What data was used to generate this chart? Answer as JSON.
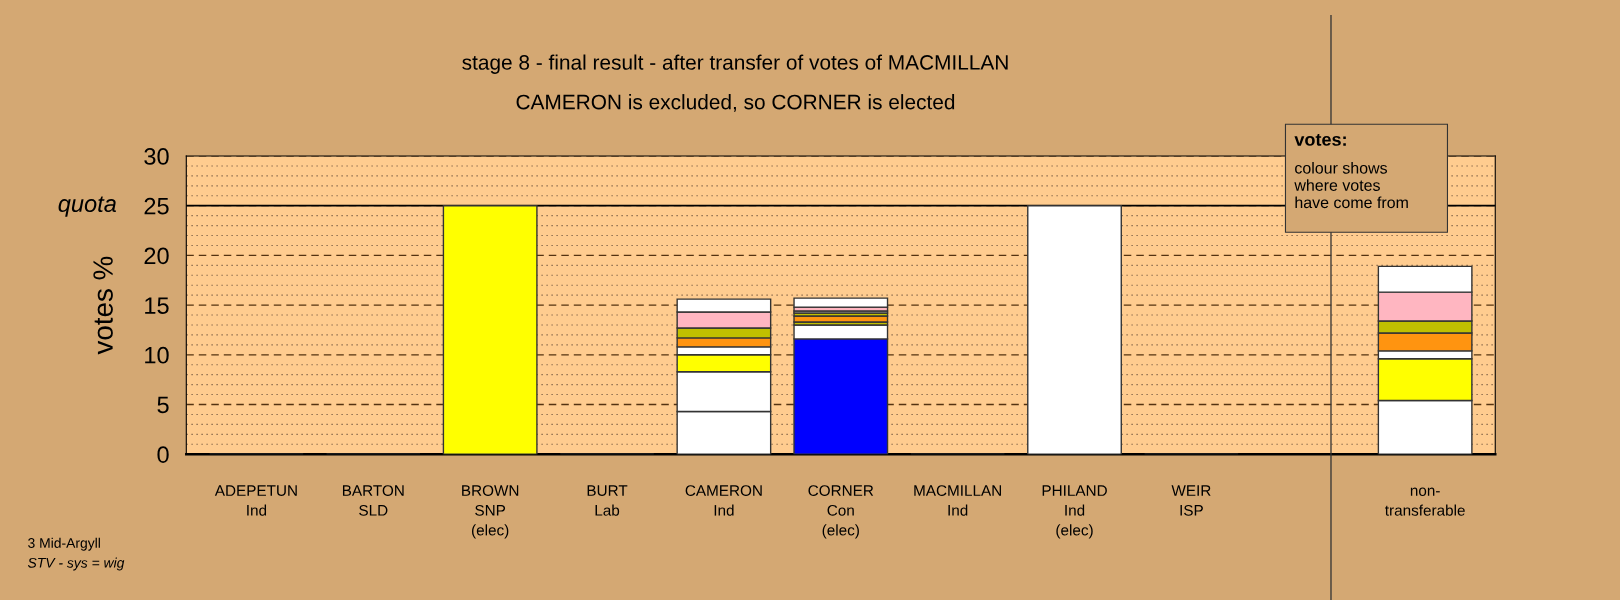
{
  "chart_data": {
    "type": "bar",
    "stacked": true,
    "title": "stage 8 - final result - after transfer of votes of MACMILLAN",
    "subtitle": "CAMERON is excluded, so CORNER is elected",
    "ylabel": "votes %",
    "categories": [
      "ADEPETUN\nInd",
      "BARTON\nSLD",
      "BROWN\nSNP\n(elec)",
      "BURT\nLab",
      "CAMERON\nInd",
      "CORNER\nCon\n(elec)",
      "MACMILLAN\nInd",
      "PHILAND\nInd\n(elec)",
      "WEIR\nISP",
      null,
      "non-\ntransferable"
    ],
    "series": [
      {
        "values": [
          0,
          0,
          25,
          0,
          4.3,
          11.6,
          0,
          25,
          0,
          null,
          5.4
        ],
        "colors": [
          "#333333",
          "#333333",
          "#ffff00",
          "#333333",
          "#ffffff",
          "#0000ff",
          "#333333",
          "#ffffff",
          "#333333",
          null,
          "#ffffff"
        ]
      },
      {
        "values": [
          null,
          null,
          null,
          null,
          4.0,
          1.4,
          null,
          null,
          null,
          null,
          4.2
        ],
        "colors": [
          null,
          null,
          null,
          null,
          "#ffffff",
          "#ffffff",
          null,
          null,
          null,
          null,
          "#ffff00"
        ]
      },
      {
        "values": [
          null,
          null,
          null,
          null,
          1.7,
          0.3,
          null,
          null,
          null,
          null,
          0.8
        ],
        "colors": [
          null,
          null,
          null,
          null,
          "#ffff00",
          "#c0c000",
          null,
          null,
          null,
          null,
          "#ffffff"
        ]
      },
      {
        "values": [
          null,
          null,
          null,
          null,
          0.8,
          0.6,
          null,
          null,
          null,
          null,
          1.8
        ],
        "colors": [
          null,
          null,
          null,
          null,
          "#ffffff",
          "#ff9410",
          null,
          null,
          null,
          null,
          "#ff9410"
        ]
      },
      {
        "values": [
          null,
          null,
          null,
          null,
          0.9,
          0.3,
          null,
          null,
          null,
          null,
          1.2
        ],
        "colors": [
          null,
          null,
          null,
          null,
          "#ff9410",
          "#c0c000",
          null,
          null,
          null,
          null,
          "#c0c000"
        ]
      },
      {
        "values": [
          null,
          null,
          null,
          null,
          1.0,
          0.2,
          null,
          null,
          null,
          null,
          2.9
        ],
        "colors": [
          null,
          null,
          null,
          null,
          "#c0c000",
          "#ffffff",
          null,
          null,
          null,
          null,
          "#ffb6c1"
        ]
      },
      {
        "values": [
          null,
          null,
          null,
          null,
          1.6,
          0.4,
          null,
          null,
          null,
          null,
          2.6
        ],
        "colors": [
          null,
          null,
          null,
          null,
          "#ffb6c1",
          "#ffb6c1",
          null,
          null,
          null,
          null,
          "#ffffff"
        ]
      },
      {
        "values": [
          null,
          null,
          null,
          null,
          1.3,
          0.9,
          null,
          null,
          null,
          null,
          null
        ],
        "colors": [
          null,
          null,
          null,
          null,
          "#ffffff",
          "#ffffff",
          null,
          null,
          null,
          null,
          null
        ]
      }
    ],
    "ylim": [
      0,
      30
    ],
    "yticks": [
      0,
      {
        "value": 1,
        "label": null
      },
      {
        "value": 2,
        "label": null
      },
      {
        "value": 3,
        "label": null
      },
      {
        "value": 4,
        "label": null
      },
      5,
      {
        "value": 6,
        "label": null
      },
      {
        "value": 7,
        "label": null
      },
      {
        "value": 8,
        "label": null
      },
      {
        "value": 9,
        "label": null
      },
      10,
      {
        "value": 11,
        "label": null
      },
      {
        "value": 12,
        "label": null
      },
      {
        "value": 13,
        "label": null
      },
      {
        "value": 14,
        "label": null
      },
      15,
      {
        "value": 16,
        "label": null
      },
      {
        "value": 17,
        "label": null
      },
      {
        "value": 18,
        "label": null
      },
      {
        "value": 19,
        "label": null
      },
      20,
      {
        "value": 21,
        "label": null
      },
      {
        "value": 22,
        "label": null
      },
      {
        "value": 23,
        "label": null
      },
      {
        "value": 24,
        "label": null
      },
      25,
      {
        "value": 26,
        "label": null
      },
      {
        "value": 27,
        "label": null
      },
      {
        "value": 28,
        "label": null
      },
      {
        "value": 29,
        "label": null
      },
      30
    ],
    "grid": "y",
    "legend": false,
    "ref_lines": [
      {
        "axis": "y",
        "value": 25,
        "label": "quota",
        "line_style": "solid"
      }
    ],
    "annotations": [
      "votes:",
      "colour shows\nwhere votes\nhave come from",
      "3 Mid-Argyll",
      "STV - sys = wig"
    ]
  }
}
